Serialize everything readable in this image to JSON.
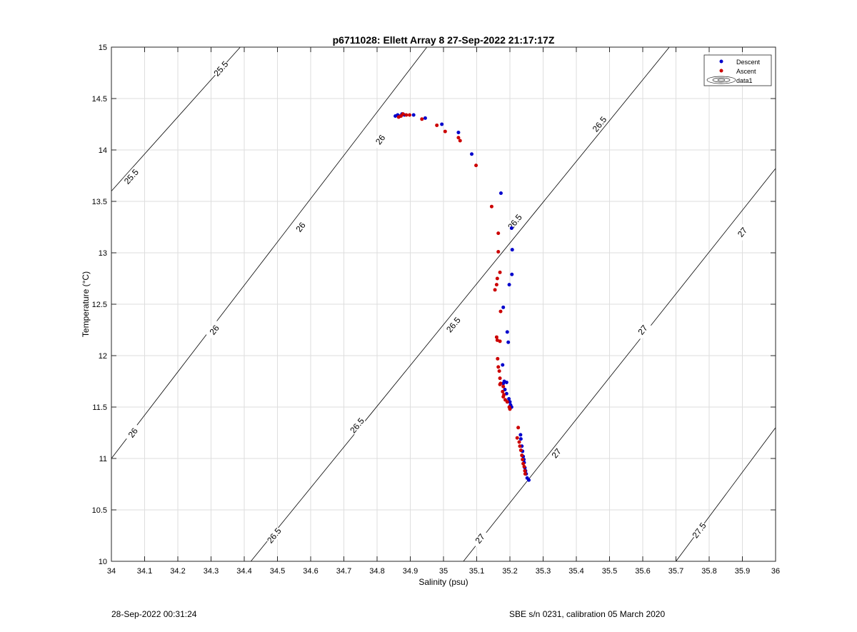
{
  "chart_data": {
    "type": "scatter",
    "title": "p6711028: Ellett Array 8 27-Sep-2022 21:17:17Z",
    "xlabel": "Salinity (psu)",
    "ylabel": "Temperature (°C)",
    "xlim": [
      34,
      36
    ],
    "ylim": [
      10,
      15
    ],
    "xticks": [
      "34",
      "34.1",
      "34.2",
      "34.3",
      "34.4",
      "34.5",
      "34.6",
      "34.7",
      "34.8",
      "34.9",
      "35",
      "35.1",
      "35.2",
      "35.3",
      "35.4",
      "35.5",
      "35.6",
      "35.7",
      "35.8",
      "35.9",
      "36"
    ],
    "yticks": [
      "10",
      "10.5",
      "11",
      "11.5",
      "12",
      "12.5",
      "13",
      "13.5",
      "14",
      "14.5",
      "15"
    ],
    "grid": true,
    "legend_position": "top-right",
    "legend": [
      "Descent",
      "Ascent",
      "data1"
    ],
    "series": [
      {
        "name": "Descent",
        "color": "#0000cc",
        "points": [
          [
            34.855,
            14.33
          ],
          [
            34.862,
            14.34
          ],
          [
            34.87,
            14.33
          ],
          [
            34.875,
            14.35
          ],
          [
            34.882,
            14.34
          ],
          [
            34.91,
            14.34
          ],
          [
            34.945,
            14.31
          ],
          [
            34.995,
            14.25
          ],
          [
            35.045,
            14.17
          ],
          [
            35.085,
            13.96
          ],
          [
            35.173,
            13.58
          ],
          [
            35.205,
            13.24
          ],
          [
            35.207,
            13.03
          ],
          [
            35.206,
            12.79
          ],
          [
            35.198,
            12.69
          ],
          [
            35.18,
            12.47
          ],
          [
            35.192,
            12.23
          ],
          [
            35.195,
            12.13
          ],
          [
            35.178,
            11.91
          ],
          [
            35.183,
            11.75
          ],
          [
            35.19,
            11.74
          ],
          [
            35.18,
            11.73
          ],
          [
            35.185,
            11.67
          ],
          [
            35.19,
            11.63
          ],
          [
            35.197,
            11.58
          ],
          [
            35.2,
            11.55
          ],
          [
            35.202,
            11.52
          ],
          [
            35.205,
            11.5
          ],
          [
            35.232,
            11.23
          ],
          [
            35.233,
            11.19
          ],
          [
            35.236,
            11.12
          ],
          [
            35.238,
            11.07
          ],
          [
            35.24,
            11.02
          ],
          [
            35.242,
            10.99
          ],
          [
            35.243,
            10.96
          ],
          [
            35.245,
            10.91
          ],
          [
            35.247,
            10.88
          ],
          [
            35.249,
            10.85
          ],
          [
            35.252,
            10.81
          ],
          [
            35.257,
            10.79
          ]
        ]
      },
      {
        "name": "Ascent",
        "color": "#cc0000",
        "points": [
          [
            34.865,
            14.32
          ],
          [
            34.872,
            14.33
          ],
          [
            34.878,
            14.35
          ],
          [
            34.888,
            14.34
          ],
          [
            34.898,
            14.34
          ],
          [
            34.935,
            14.3
          ],
          [
            34.98,
            14.24
          ],
          [
            35.005,
            14.18
          ],
          [
            35.045,
            14.12
          ],
          [
            35.05,
            14.09
          ],
          [
            35.098,
            13.85
          ],
          [
            35.145,
            13.45
          ],
          [
            35.165,
            13.19
          ],
          [
            35.165,
            13.01
          ],
          [
            35.17,
            12.81
          ],
          [
            35.162,
            12.75
          ],
          [
            35.16,
            12.69
          ],
          [
            35.155,
            12.64
          ],
          [
            35.172,
            12.43
          ],
          [
            35.16,
            12.18
          ],
          [
            35.162,
            12.15
          ],
          [
            35.17,
            12.14
          ],
          [
            35.163,
            11.97
          ],
          [
            35.165,
            11.89
          ],
          [
            35.168,
            11.85
          ],
          [
            35.17,
            11.78
          ],
          [
            35.172,
            11.73
          ],
          [
            35.17,
            11.72
          ],
          [
            35.18,
            11.7
          ],
          [
            35.178,
            11.65
          ],
          [
            35.182,
            11.62
          ],
          [
            35.18,
            11.6
          ],
          [
            35.186,
            11.57
          ],
          [
            35.192,
            11.55
          ],
          [
            35.198,
            11.5
          ],
          [
            35.2,
            11.48
          ],
          [
            35.225,
            11.3
          ],
          [
            35.222,
            11.2
          ],
          [
            35.228,
            11.16
          ],
          [
            35.23,
            11.12
          ],
          [
            35.233,
            11.08
          ],
          [
            35.236,
            11.03
          ],
          [
            35.238,
            10.99
          ],
          [
            35.24,
            10.95
          ],
          [
            35.243,
            10.92
          ],
          [
            35.245,
            10.88
          ],
          [
            35.246,
            10.85
          ]
        ]
      }
    ],
    "isopycnals": [
      {
        "label": "25.5",
        "points": [
          [
            34,
            13.6
          ],
          [
            34.388,
            15
          ]
        ],
        "label_positions": [
          [
            34.06,
            13.74
          ],
          [
            34.33,
            14.79
          ]
        ]
      },
      {
        "label": "26",
        "points": [
          [
            34,
            11
          ],
          [
            34.95,
            15
          ]
        ],
        "label_positions": [
          [
            34.065,
            11.25
          ],
          [
            34.31,
            12.25
          ],
          [
            34.57,
            13.25
          ],
          [
            34.81,
            14.1
          ]
        ]
      },
      {
        "label": "26.5",
        "points": [
          [
            34.42,
            10
          ],
          [
            35.68,
            15
          ]
        ],
        "label_positions": [
          [
            34.49,
            10.25
          ],
          [
            34.74,
            11.32
          ],
          [
            35.03,
            12.3
          ],
          [
            35.215,
            13.3
          ],
          [
            35.47,
            14.25
          ]
        ]
      },
      {
        "label": "27",
        "points": [
          [
            35.06,
            10
          ],
          [
            36,
            13.82
          ]
        ],
        "label_positions": [
          [
            35.11,
            10.22
          ],
          [
            35.34,
            11.05
          ],
          [
            35.6,
            12.25
          ],
          [
            35.9,
            13.2
          ]
        ]
      },
      {
        "label": "27.5",
        "points": [
          [
            35.7,
            10
          ],
          [
            36,
            11.3
          ]
        ],
        "label_positions": [
          [
            35.77,
            10.3
          ]
        ]
      }
    ]
  },
  "footer": {
    "left": "28-Sep-2022 00:31:24",
    "right": "SBE s/n 0231, calibration 05 March 2020"
  }
}
